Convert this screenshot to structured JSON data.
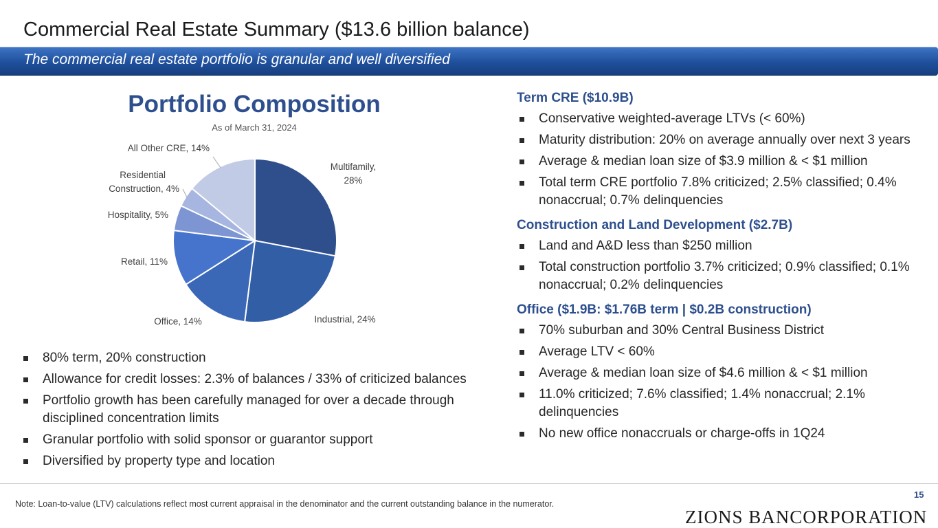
{
  "header": {
    "title": "Commercial Real Estate Summary ($13.6 billion balance)",
    "subtitle": "The commercial real estate portfolio is granular and well diversified"
  },
  "chart_data": {
    "type": "pie",
    "title": "Portfolio Composition",
    "subtitle": "As of March 31, 2024",
    "slices": [
      {
        "label": "Multifamily, 28%",
        "name": "Multifamily",
        "value": 28,
        "color": "#2e4f8c"
      },
      {
        "label": "Industrial, 24%",
        "name": "Industrial",
        "value": 24,
        "color": "#325ea6"
      },
      {
        "label": "Office, 14%",
        "name": "Office",
        "value": 14,
        "color": "#3a67b6"
      },
      {
        "label": "Retail, 11%",
        "name": "Retail",
        "value": 11,
        "color": "#4674cc"
      },
      {
        "label": "Hospitality, 5%",
        "name": "Hospitality",
        "value": 5,
        "color": "#7d95d2"
      },
      {
        "label": "Residential Construction, 4%",
        "name": "Residential Construction",
        "value": 4,
        "color": "#a6b6e0"
      },
      {
        "label": "All Other CRE, 14%",
        "name": "All Other CRE",
        "value": 14,
        "color": "#c2cbe6"
      }
    ]
  },
  "left_bullets": [
    "80% term, 20% construction",
    "Allowance for credit losses: 2.3% of balances / 33% of criticized balances",
    "Portfolio growth has been carefully managed for over a decade through disciplined concentration limits",
    "Granular portfolio with solid sponsor or guarantor support",
    "Diversified by property type and location"
  ],
  "sections": [
    {
      "heading": "Term CRE ($10.9B)",
      "bullets": [
        "Conservative weighted-average LTVs (< 60%)",
        "Maturity distribution: 20% on average annually over next 3 years",
        "Average & median loan size of $3.9 million & < $1 million",
        "Total term CRE portfolio 7.8% criticized; 2.5% classified; 0.4% nonaccrual; 0.7% delinquencies"
      ]
    },
    {
      "heading": "Construction and Land Development ($2.7B)",
      "bullets": [
        "Land and A&D less than $250 million",
        "Total construction portfolio 3.7% criticized; 0.9% classified; 0.1% nonaccrual; 0.2% delinquencies"
      ]
    },
    {
      "heading": "Office ($1.9B: $1.76B term | $0.2B construction)",
      "bullets": [
        "70% suburban and 30% Central Business District",
        "Average LTV < 60%",
        "Average & median loan size of $4.6 million & < $1 million",
        "11.0% criticized; 7.6% classified; 1.4% nonaccrual; 2.1% delinquencies",
        "No new office nonaccruals or charge-offs in 1Q24"
      ]
    }
  ],
  "footer": {
    "note": "Note: Loan-to-value (LTV) calculations reflect most current appraisal in the denominator and the current outstanding balance in the numerator.",
    "page_number": "15",
    "logo_text": "ZIONS BANCORPORATION"
  }
}
